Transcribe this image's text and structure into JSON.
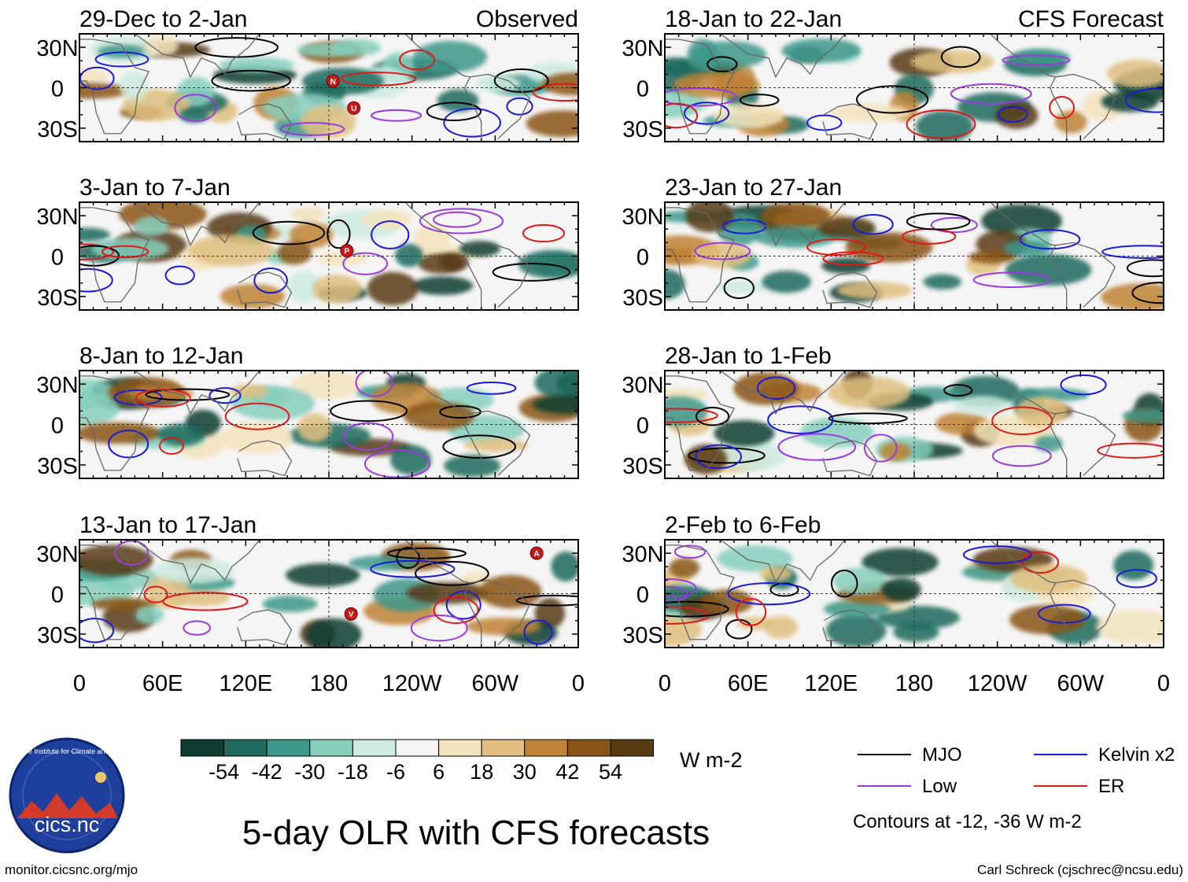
{
  "chart_data": {
    "type": "heatmap",
    "title": "5-day OLR with CFS forecasts",
    "units": "W m-2",
    "columns": [
      {
        "label": "Observed",
        "panels": [
          "29-Dec to 2-Jan",
          "3-Jan to 7-Jan",
          "8-Jan to 12-Jan",
          "13-Jan to 17-Jan"
        ]
      },
      {
        "label": "CFS Forecast",
        "panels": [
          "18-Jan to 22-Jan",
          "23-Jan to 27-Jan",
          "28-Jan to 1-Feb",
          "2-Feb to 6-Feb"
        ]
      }
    ],
    "xticks": [
      "0",
      "60E",
      "120E",
      "180",
      "120W",
      "60W",
      "0"
    ],
    "yticks": [
      "30N",
      "0",
      "30S"
    ],
    "xlim": [
      0,
      360
    ],
    "ylim": [
      -40,
      40
    ],
    "colorbar": {
      "levels": [
        -54,
        -42,
        -30,
        -18,
        -6,
        6,
        18,
        30,
        42,
        54
      ],
      "labels": [
        "-54",
        "-42",
        "-30",
        "-18",
        "-6",
        "6",
        "18",
        "30",
        "42",
        "54"
      ],
      "colors": [
        "#0e3c33",
        "#1f6b5d",
        "#3d978a",
        "#86cfbd",
        "#cdebe1",
        "#f4f4f4",
        "#f4e3bc",
        "#e1c07f",
        "#bf8236",
        "#8a5416",
        "#583a12"
      ]
    },
    "legend": [
      {
        "label": "MJO",
        "color": "#000000"
      },
      {
        "label": "Kelvin x2",
        "color": "#1a1ad8"
      },
      {
        "label": "Low",
        "color": "#9a3be0"
      },
      {
        "label": "ER",
        "color": "#e01818"
      }
    ],
    "contour_note": "Contours at -12, -36 W m-2",
    "storm_markers": [
      {
        "panel": 0,
        "label": "N",
        "lon": 183,
        "lat": 5
      },
      {
        "panel": 0,
        "label": "U",
        "lon": 198,
        "lat": -15
      },
      {
        "panel": 1,
        "label": "P",
        "lon": 193,
        "lat": 4
      },
      {
        "panel": 3,
        "label": "V",
        "lon": 196,
        "lat": -15
      },
      {
        "panel": 3,
        "label": "A",
        "lon": 330,
        "lat": 30
      }
    ]
  },
  "logo": {
    "text": "cics.nc",
    "ring_text": "Cooperative Institute for Climate and Satellites"
  },
  "footer": {
    "left": "monitor.cicsnc.org/mjo",
    "right": "Carl Schreck (cjschrec@ncsu.edu)"
  }
}
